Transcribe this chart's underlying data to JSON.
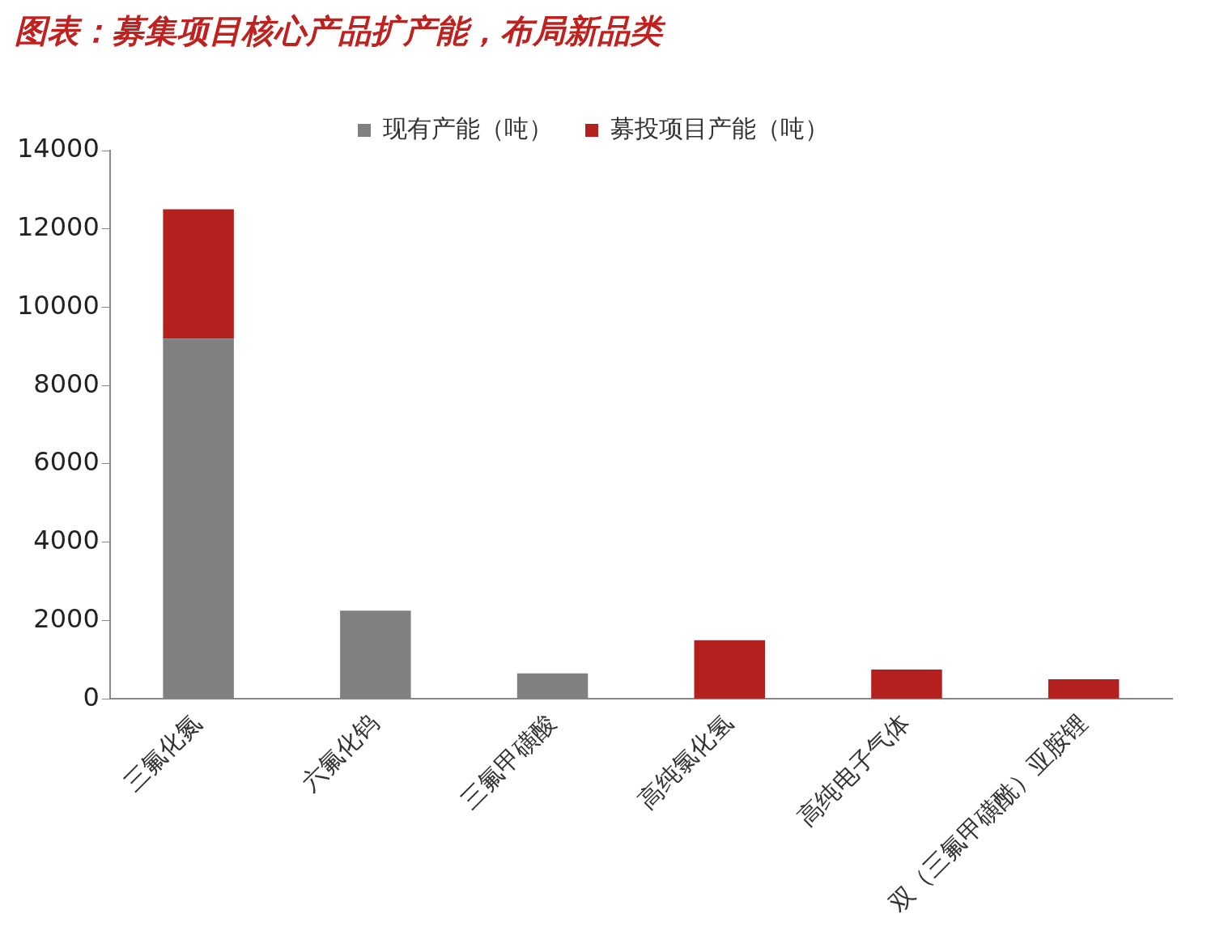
{
  "chart_data": {
    "type": "bar",
    "title": "图表：募集项目核心产品扩产能，布局新品类",
    "categories": [
      "三氟化氮",
      "六氟化钨",
      "三氟甲磺酸",
      "高纯氯化氢",
      "高纯电子气体",
      "双（三氟甲磺酰）亚胺锂"
    ],
    "series": [
      {
        "name": "现有产能（吨）",
        "color": "#808080",
        "values": [
          9200,
          2250,
          650,
          null,
          null,
          null
        ]
      },
      {
        "name": "募投项目产能（吨）",
        "color": "#b4201e",
        "values": [
          3300,
          null,
          null,
          1500,
          750,
          500
        ]
      }
    ],
    "stacked": true,
    "ylim": [
      0,
      14000
    ],
    "yticks": [
      0,
      2000,
      4000,
      6000,
      8000,
      10000,
      12000,
      14000
    ],
    "grid": false,
    "legend": "top"
  }
}
